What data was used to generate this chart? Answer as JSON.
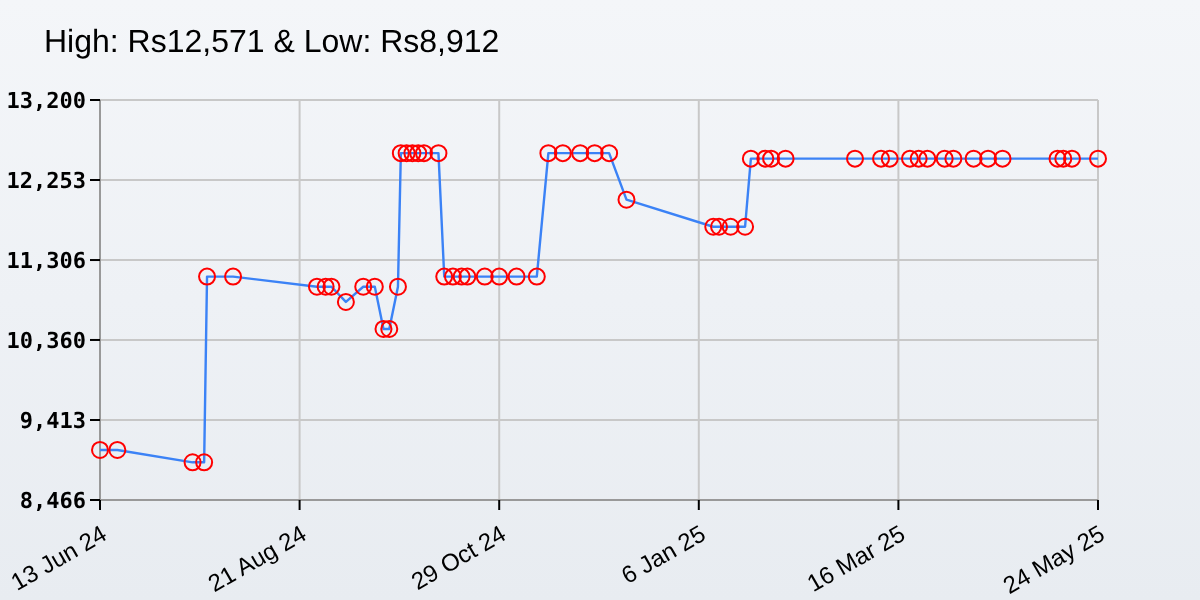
{
  "chart_data": {
    "type": "line",
    "title": "High: Rs12,571 & Low: Rs8,912",
    "x": [
      "2024-06-13",
      "2024-06-19",
      "2024-07-15",
      "2024-07-19",
      "2024-07-20",
      "2024-07-29",
      "2024-08-27",
      "2024-08-30",
      "2024-09-01",
      "2024-09-06",
      "2024-09-12",
      "2024-09-16",
      "2024-09-19",
      "2024-09-21",
      "2024-09-24",
      "2024-09-25",
      "2024-09-27",
      "2024-09-29",
      "2024-10-01",
      "2024-10-03",
      "2024-10-08",
      "2024-10-10",
      "2024-10-13",
      "2024-10-16",
      "2024-10-18",
      "2024-10-24",
      "2024-10-29",
      "2024-11-04",
      "2024-11-11",
      "2024-11-15",
      "2024-11-20",
      "2024-11-26",
      "2024-12-01",
      "2024-12-06",
      "2024-12-12",
      "2025-01-11",
      "2025-01-13",
      "2025-01-17",
      "2025-01-22",
      "2025-01-24",
      "2025-01-29",
      "2025-01-31",
      "2025-02-05",
      "2025-03-01",
      "2025-03-10",
      "2025-03-13",
      "2025-03-20",
      "2025-03-23",
      "2025-03-26",
      "2025-04-01",
      "2025-04-04",
      "2025-04-11",
      "2025-04-16",
      "2025-04-21",
      "2025-05-10",
      "2025-05-12",
      "2025-05-15",
      "2025-05-24"
    ],
    "series": [
      {
        "color": "#3b82f6",
        "values": [
          9058,
          9058,
          8912,
          8912,
          11110,
          11110,
          10990,
          10990,
          10990,
          10810,
          10990,
          10990,
          10490,
          10490,
          10990,
          12571,
          12571,
          12571,
          12571,
          12571,
          12571,
          11110,
          11110,
          11110,
          11110,
          11110,
          11110,
          11110,
          11110,
          12571,
          12571,
          12571,
          12571,
          12571,
          12020,
          11700,
          11700,
          11700,
          11700,
          12506,
          12506,
          12506,
          12506,
          12506,
          12506,
          12506,
          12506,
          12506,
          12506,
          12506,
          12506,
          12506,
          12506,
          12506,
          12506,
          12506,
          12506,
          12506
        ]
      }
    ],
    "xlim": [
      "2024-06-13",
      "2025-05-24"
    ],
    "xticks": [
      {
        "value": "2024-06-13",
        "label": "13 Jun 24"
      },
      {
        "value": "2024-08-21",
        "label": "21 Aug 24"
      },
      {
        "value": "2024-10-29",
        "label": "29 Oct 24"
      },
      {
        "value": "2025-01-06",
        "label": "6 Jan 25"
      },
      {
        "value": "2025-03-16",
        "label": "16 Mar 25"
      },
      {
        "value": "2025-05-24",
        "label": "24 May 25"
      }
    ],
    "ylim": [
      8466,
      13200
    ],
    "yticks": [
      {
        "value": 8466,
        "label": "8,466"
      },
      {
        "value": 9413,
        "label": "9,413"
      },
      {
        "value": 10360,
        "label": "10,360"
      },
      {
        "value": 11306,
        "label": "11,306"
      },
      {
        "value": 12253,
        "label": "12,253"
      },
      {
        "value": 13200,
        "label": "13,200"
      }
    ],
    "grid": true,
    "marker": "circle",
    "line_style": "solid"
  }
}
